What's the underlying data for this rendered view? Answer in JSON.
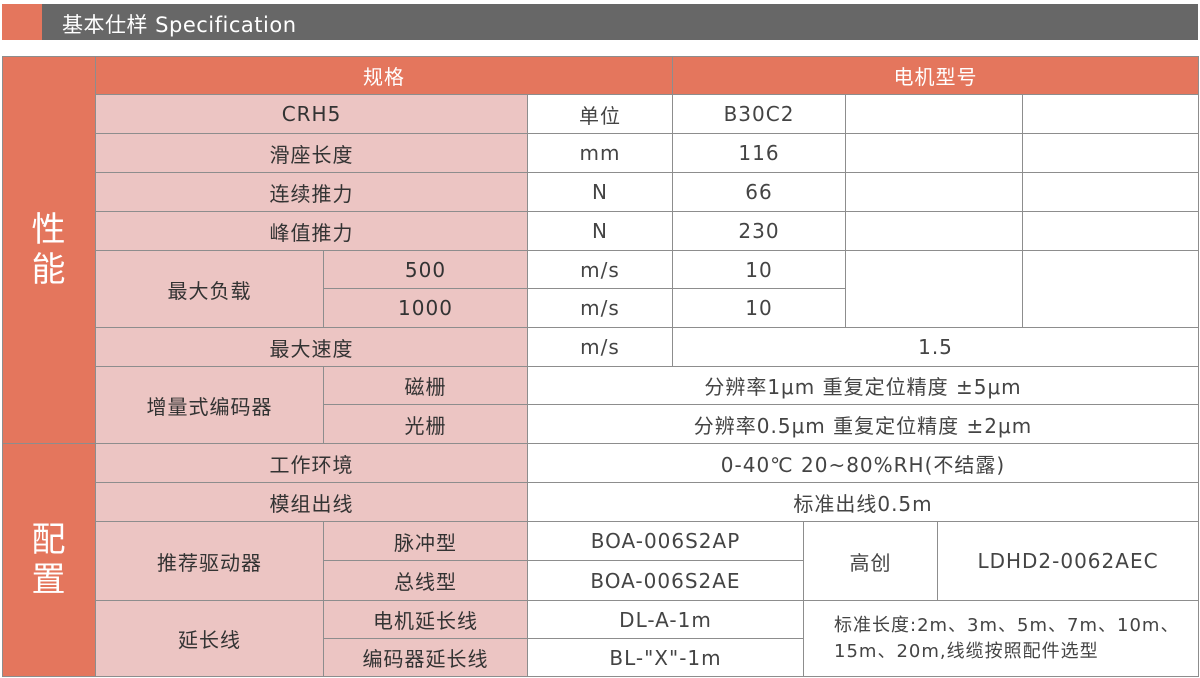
{
  "section_title": "基本仕样 Specification",
  "colors": {
    "accent": "#e4765d",
    "header_bar": "#676767",
    "label_fill": "#ecc5c3"
  },
  "table": {
    "header": {
      "spec": "规格",
      "motor_model": "电机型号"
    },
    "groups": {
      "performance": "性\n能",
      "configuration": "配\n置"
    },
    "rows": {
      "model": {
        "label": "CRH5",
        "unit": "单位",
        "value": "B30C2"
      },
      "slider_length": {
        "label": "滑座长度",
        "unit": "mm",
        "value": "116"
      },
      "continuous_thrust": {
        "label": "连续推力",
        "unit": "N",
        "value": "66"
      },
      "peak_thrust": {
        "label": "峰值推力",
        "unit": "N",
        "value": "230"
      },
      "max_load": {
        "label": "最大负载",
        "sub": [
          {
            "label": "500",
            "unit": "m/s",
            "value": "10"
          },
          {
            "label": "1000",
            "unit": "m/s",
            "value": "10"
          }
        ]
      },
      "max_speed": {
        "label": "最大速度",
        "unit": "m/s",
        "value": "1.5"
      },
      "encoder": {
        "label": "增量式编码器",
        "sub": [
          {
            "label": "磁栅",
            "value": "分辨率1μm 重复定位精度 ±5μm"
          },
          {
            "label": "光栅",
            "value": "分辨率0.5μm 重复定位精度 ±2μm"
          }
        ]
      },
      "environment": {
        "label": "工作环境",
        "value": "0-40℃ 20~80%RH(不结露)"
      },
      "cable_out": {
        "label": "模组出线",
        "value": "标准出线0.5m"
      },
      "driver": {
        "label": "推荐驱动器",
        "sub": [
          {
            "label": "脉冲型",
            "value": "BOA-006S2AP"
          },
          {
            "label": "总线型",
            "value": "BOA-006S2AE"
          }
        ],
        "brand": "高创",
        "brand_model": "LDHD2-0062AEC"
      },
      "extension": {
        "label": "延长线",
        "sub": [
          {
            "label": "电机延长线",
            "value": "DL-A-1m"
          },
          {
            "label": "编码器延长线",
            "value": "BL-\"X\"-1m"
          }
        ],
        "note": "标准长度:2m、3m、5m、7m、10m、15m、20m,线缆按照配件选型"
      }
    }
  }
}
